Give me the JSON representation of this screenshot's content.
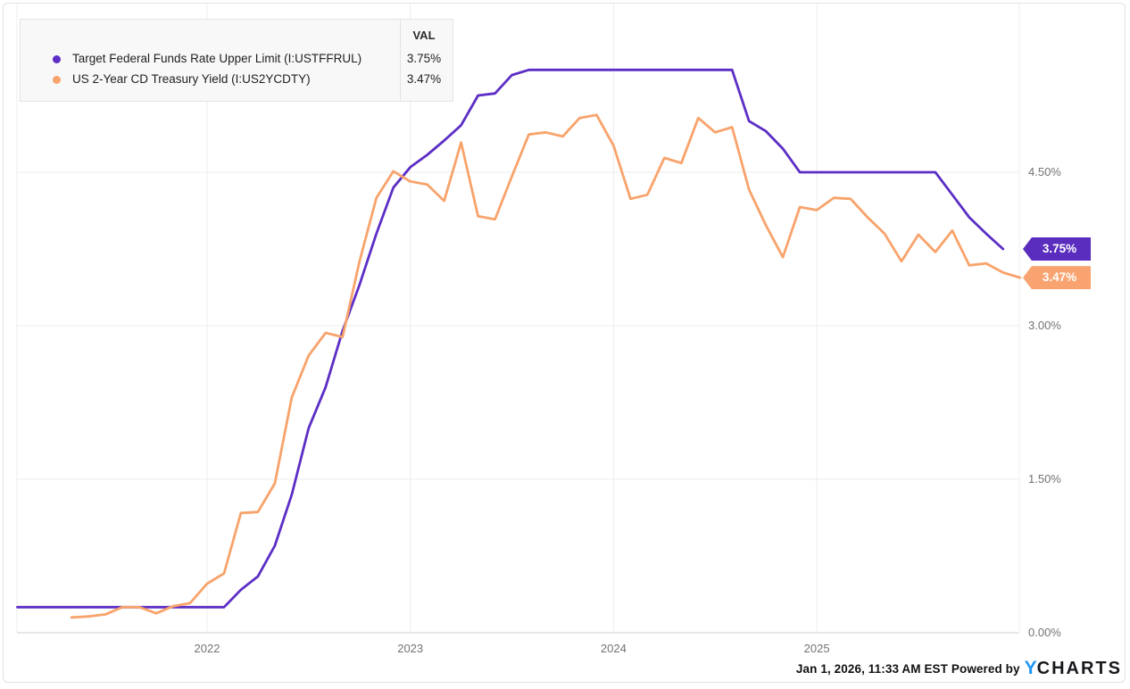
{
  "legend": {
    "val_header": "VAL",
    "series": [
      {
        "label": "Target Federal Funds Rate Upper Limit (I:USTFFRUL)",
        "val": "3.75%",
        "color": "#5c2ec5"
      },
      {
        "label": "US 2-Year CD Treasury Yield (I:US2YCDTY)",
        "val": "3.47%",
        "color": "#f8a36b"
      }
    ]
  },
  "badges": [
    {
      "text": "3.75%",
      "color": "#5b2dbe"
    },
    {
      "text": "3.47%",
      "color": "#f9a470"
    }
  ],
  "attribution": {
    "timestamp_text": "Jan 1, 2026, 11:33 AM EST Powered by",
    "brand_y": "Y",
    "brand_rest": "CHARTS"
  },
  "colors": {
    "purple_line": "#5c2ec5",
    "orange_line": "#f8a36b",
    "grid": "#ededed",
    "axis": "#cfcfcf",
    "tick_text": "#737373"
  },
  "chart_data": {
    "type": "line",
    "title": "",
    "xlabel": "",
    "ylabel": "",
    "x_unit": "months_since_2021-01",
    "x_range_months": [
      0.8,
      60
    ],
    "ylim": [
      0,
      6.15
    ],
    "grid": true,
    "legend_position": "top-left",
    "y_ticks": [
      {
        "v": 0.0,
        "label": "0.00%"
      },
      {
        "v": 1.5,
        "label": "1.50%"
      },
      {
        "v": 3.0,
        "label": "3.00%"
      },
      {
        "v": 4.5,
        "label": "4.50%"
      }
    ],
    "x_ticks": [
      {
        "m": 12,
        "label": "2022"
      },
      {
        "m": 24,
        "label": "2023"
      },
      {
        "m": 36,
        "label": "2024"
      },
      {
        "m": 48,
        "label": "2025"
      }
    ],
    "series": [
      {
        "name": "Target Federal Funds Rate Upper Limit (I:USTFFRUL)",
        "ticker": "I:USTFFRUL",
        "color": "#5c2ec5",
        "last_value_label": "3.75%",
        "points": [
          [
            0.8,
            0.25
          ],
          [
            1,
            0.25
          ],
          [
            2,
            0.25
          ],
          [
            3,
            0.25
          ],
          [
            4,
            0.25
          ],
          [
            5,
            0.25
          ],
          [
            6,
            0.25
          ],
          [
            7,
            0.25
          ],
          [
            8,
            0.25
          ],
          [
            9,
            0.25
          ],
          [
            10,
            0.25
          ],
          [
            11,
            0.25
          ],
          [
            12,
            0.25
          ],
          [
            13,
            0.25
          ],
          [
            14,
            0.42
          ],
          [
            15,
            0.55
          ],
          [
            16,
            0.85
          ],
          [
            17,
            1.35
          ],
          [
            18,
            2.0
          ],
          [
            19,
            2.4
          ],
          [
            20,
            2.95
          ],
          [
            21,
            3.4
          ],
          [
            22,
            3.9
          ],
          [
            23,
            4.35
          ],
          [
            24,
            4.55
          ],
          [
            25,
            4.67
          ],
          [
            26,
            4.81
          ],
          [
            27,
            4.96
          ],
          [
            28,
            5.25
          ],
          [
            29,
            5.27
          ],
          [
            30,
            5.45
          ],
          [
            31,
            5.5
          ],
          [
            32,
            5.5
          ],
          [
            33,
            5.5
          ],
          [
            34,
            5.5
          ],
          [
            35,
            5.5
          ],
          [
            36,
            5.5
          ],
          [
            37,
            5.5
          ],
          [
            38,
            5.5
          ],
          [
            39,
            5.5
          ],
          [
            40,
            5.5
          ],
          [
            41,
            5.5
          ],
          [
            42,
            5.5
          ],
          [
            43,
            5.5
          ],
          [
            44,
            5.0
          ],
          [
            45,
            4.9
          ],
          [
            46,
            4.73
          ],
          [
            47,
            4.5
          ],
          [
            48,
            4.5
          ],
          [
            49,
            4.5
          ],
          [
            50,
            4.5
          ],
          [
            51,
            4.5
          ],
          [
            52,
            4.5
          ],
          [
            53,
            4.5
          ],
          [
            54,
            4.5
          ],
          [
            55,
            4.5
          ],
          [
            56,
            4.28
          ],
          [
            57,
            4.06
          ],
          [
            58,
            3.9
          ],
          [
            59,
            3.75
          ]
        ]
      },
      {
        "name": "US 2-Year CD Treasury Yield (I:US2YCDTY)",
        "ticker": "I:US2YCDTY",
        "color": "#f8a36b",
        "last_value_label": "3.47%",
        "points": [
          [
            4,
            0.15
          ],
          [
            5,
            0.16
          ],
          [
            6,
            0.18
          ],
          [
            7,
            0.25
          ],
          [
            8,
            0.25
          ],
          [
            9,
            0.19
          ],
          [
            10,
            0.26
          ],
          [
            11,
            0.29
          ],
          [
            12,
            0.48
          ],
          [
            13,
            0.58
          ],
          [
            14,
            1.17
          ],
          [
            15,
            1.18
          ],
          [
            16,
            1.46
          ],
          [
            17,
            2.3
          ],
          [
            18,
            2.71
          ],
          [
            19,
            2.93
          ],
          [
            20,
            2.89
          ],
          [
            21,
            3.63
          ],
          [
            22,
            4.25
          ],
          [
            23,
            4.51
          ],
          [
            24,
            4.41
          ],
          [
            25,
            4.38
          ],
          [
            26,
            4.22
          ],
          [
            27,
            4.79
          ],
          [
            28,
            4.07
          ],
          [
            29,
            4.04
          ],
          [
            30,
            4.46
          ],
          [
            31,
            4.87
          ],
          [
            32,
            4.89
          ],
          [
            33,
            4.85
          ],
          [
            34,
            5.03
          ],
          [
            35,
            5.06
          ],
          [
            36,
            4.76
          ],
          [
            37,
            4.24
          ],
          [
            38,
            4.28
          ],
          [
            39,
            4.64
          ],
          [
            40,
            4.59
          ],
          [
            41,
            5.03
          ],
          [
            42,
            4.89
          ],
          [
            43,
            4.94
          ],
          [
            44,
            4.33
          ],
          [
            45,
            3.98
          ],
          [
            46,
            3.67
          ],
          [
            47,
            4.16
          ],
          [
            48,
            4.13
          ],
          [
            49,
            4.25
          ],
          [
            50,
            4.24
          ],
          [
            51,
            4.06
          ],
          [
            52,
            3.9
          ],
          [
            53,
            3.63
          ],
          [
            54,
            3.89
          ],
          [
            55,
            3.72
          ],
          [
            56,
            3.93
          ],
          [
            57,
            3.59
          ],
          [
            58,
            3.61
          ],
          [
            59,
            3.52
          ],
          [
            60,
            3.47
          ]
        ]
      }
    ]
  }
}
